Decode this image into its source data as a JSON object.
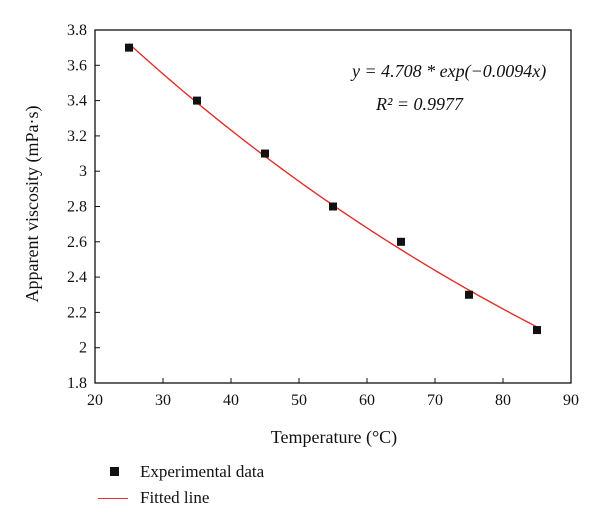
{
  "chart_data": {
    "type": "scatter",
    "xlabel": "Temperature (°C)",
    "ylabel": "Apparent viscosity (mPa·s)",
    "xlim": [
      20,
      90
    ],
    "ylim": [
      1.8,
      3.8
    ],
    "x_ticks": [
      "20",
      "30",
      "40",
      "50",
      "60",
      "70",
      "80",
      "90"
    ],
    "y_ticks": [
      "1.8",
      "2",
      "2.2",
      "2.4",
      "2.6",
      "2.8",
      "3",
      "3.2",
      "3.4",
      "3.6",
      "3.8"
    ],
    "grid": false,
    "legend_position": "bottom",
    "series": [
      {
        "name": "Experimental data",
        "kind": "scatter",
        "marker": "square",
        "color": "#111111",
        "x": [
          25,
          35,
          45,
          55,
          65,
          75,
          85
        ],
        "y": [
          3.7,
          3.4,
          3.1,
          2.8,
          2.6,
          2.3,
          2.1
        ]
      },
      {
        "name": "Fitted line",
        "kind": "line",
        "color": "#e0302a",
        "model": {
          "a": 4.708,
          "b": -0.0094
        },
        "x_range": [
          25,
          85
        ]
      }
    ],
    "annotations": {
      "equation": "y = 4.708 * exp(−0.0094x)",
      "r_squared": "R² = 0.9977"
    }
  }
}
